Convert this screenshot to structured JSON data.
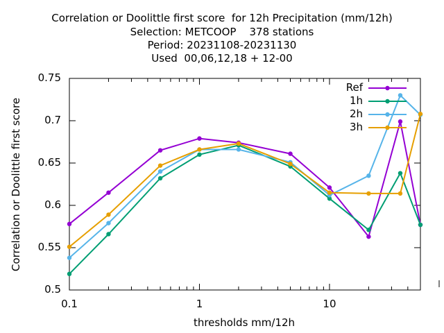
{
  "chart_data": {
    "type": "line",
    "title_lines": [
      "Correlation or Doolittle first score  for 12h Precipitation (mm/12h)",
      "Selection: METCOOP    378 stations",
      "Period: 20231108-20231130",
      "Used  00,06,12,18 + 12-00"
    ],
    "xlabel": "thresholds mm/12h",
    "ylabel": "Correlation or Doolittle first score",
    "xscale": "log",
    "xlim": [
      0.1,
      50
    ],
    "ylim": [
      0.5,
      0.75
    ],
    "xticks": [
      {
        "value": 0.1,
        "label": "0.1"
      },
      {
        "value": 1,
        "label": "1"
      },
      {
        "value": 10,
        "label": "10"
      }
    ],
    "yticks": [
      {
        "value": 0.5,
        "label": "0.5"
      },
      {
        "value": 0.55,
        "label": "0.55"
      },
      {
        "value": 0.6,
        "label": "0.6"
      },
      {
        "value": 0.65,
        "label": "0.65"
      },
      {
        "value": 0.7,
        "label": "0.7"
      },
      {
        "value": 0.75,
        "label": "0.75"
      }
    ],
    "legend_position": "top-right",
    "x": [
      0.1,
      0.2,
      0.5,
      1,
      2,
      5,
      10,
      20,
      35,
      50
    ],
    "series": [
      {
        "name": "Ref",
        "color": "#9400d3",
        "values": [
          0.578,
          0.615,
          0.665,
          0.679,
          0.674,
          0.661,
          0.621,
          0.563,
          0.699,
          0.577
        ]
      },
      {
        "name": "1h",
        "color": "#009e73",
        "values": [
          0.519,
          0.566,
          0.632,
          0.66,
          0.671,
          0.646,
          0.608,
          0.571,
          0.638,
          0.577
        ]
      },
      {
        "name": "2h",
        "color": "#56b4e9",
        "values": [
          0.538,
          0.579,
          0.64,
          0.666,
          0.666,
          0.651,
          0.612,
          0.635,
          0.73,
          0.707
        ]
      },
      {
        "name": "3h",
        "color": "#e69f00",
        "values": [
          0.551,
          0.589,
          0.647,
          0.666,
          0.673,
          0.649,
          0.615,
          0.614,
          0.614,
          0.708
        ]
      }
    ]
  }
}
